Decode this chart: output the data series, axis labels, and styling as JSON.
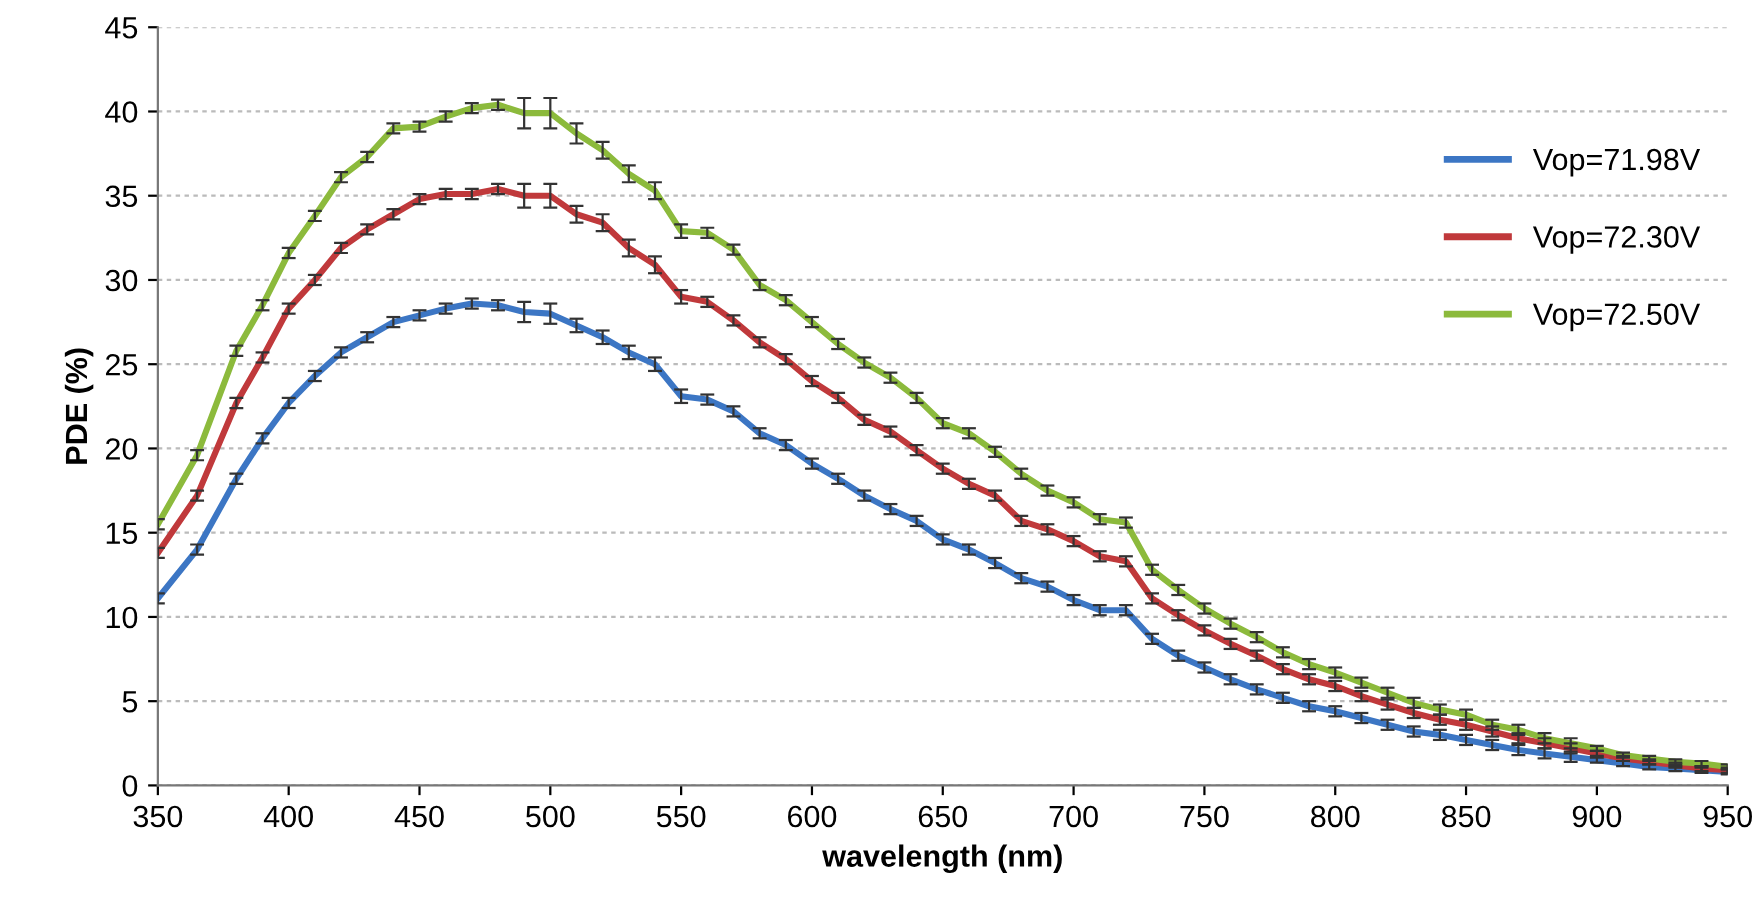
{
  "chart_data": {
    "type": "line",
    "xlabel": "wavelength (nm)",
    "ylabel": "PDE (%)",
    "x": [
      350,
      365,
      380,
      390,
      400,
      410,
      420,
      430,
      440,
      450,
      460,
      470,
      480,
      490,
      500,
      510,
      520,
      530,
      540,
      550,
      560,
      570,
      580,
      590,
      600,
      610,
      620,
      630,
      640,
      650,
      660,
      670,
      680,
      690,
      700,
      710,
      720,
      730,
      740,
      750,
      760,
      770,
      780,
      790,
      800,
      810,
      820,
      830,
      840,
      850,
      860,
      870,
      880,
      890,
      900,
      910,
      920,
      930,
      940,
      950
    ],
    "series": [
      {
        "name": "Vop=71.98V",
        "color": "#3c76c4",
        "values": [
          11.1,
          14,
          18.2,
          20.6,
          22.7,
          24.3,
          25.7,
          26.6,
          27.5,
          27.9,
          28.3,
          28.6,
          28.5,
          28.1,
          28.0,
          27.3,
          26.6,
          25.7,
          25.0,
          23.1,
          22.9,
          22.2,
          20.9,
          20.2,
          19.1,
          18.2,
          17.2,
          16.4,
          15.7,
          14.6,
          14.0,
          13.2,
          12.3,
          11.8,
          11.0,
          10.4,
          10.4,
          8.7,
          7.7,
          7.0,
          6.3,
          5.7,
          5.2,
          4.7,
          4.4,
          4.0,
          3.6,
          3.2,
          3.0,
          2.7,
          2.4,
          2.1,
          1.9,
          1.7,
          1.5,
          1.3,
          1.1,
          1.0,
          0.9,
          0.8
        ],
        "errors": [
          0.3,
          0.3,
          0.3,
          0.3,
          0.3,
          0.3,
          0.3,
          0.3,
          0.3,
          0.3,
          0.3,
          0.3,
          0.3,
          0.6,
          0.6,
          0.4,
          0.4,
          0.4,
          0.4,
          0.4,
          0.3,
          0.3,
          0.3,
          0.3,
          0.3,
          0.3,
          0.3,
          0.3,
          0.3,
          0.3,
          0.3,
          0.3,
          0.3,
          0.3,
          0.3,
          0.3,
          0.3,
          0.3,
          0.3,
          0.3,
          0.3,
          0.3,
          0.3,
          0.3,
          0.3,
          0.3,
          0.3,
          0.3,
          0.3,
          0.3,
          0.3,
          0.3,
          0.3,
          0.3,
          0.15,
          0.15,
          0.15,
          0.15,
          0.15,
          0.15
        ]
      },
      {
        "name": "Vop=72.30V",
        "color": "#c0393b",
        "values": [
          13.8,
          17.2,
          22.7,
          25.4,
          28.3,
          30.0,
          31.9,
          33.0,
          33.9,
          34.8,
          35.1,
          35.1,
          35.4,
          35.0,
          35.0,
          33.9,
          33.4,
          31.9,
          30.9,
          29.0,
          28.7,
          27.6,
          26.3,
          25.3,
          24.0,
          23.0,
          21.7,
          21.0,
          19.9,
          18.8,
          17.9,
          17.2,
          15.7,
          15.2,
          14.5,
          13.6,
          13.3,
          11.1,
          10.1,
          9.2,
          8.4,
          7.7,
          6.9,
          6.3,
          5.9,
          5.3,
          4.8,
          4.3,
          3.9,
          3.6,
          3.2,
          2.8,
          2.5,
          2.2,
          1.9,
          1.6,
          1.4,
          1.2,
          1.0,
          0.9
        ],
        "errors": [
          0.3,
          0.3,
          0.3,
          0.3,
          0.3,
          0.3,
          0.3,
          0.3,
          0.3,
          0.3,
          0.3,
          0.3,
          0.3,
          0.7,
          0.7,
          0.5,
          0.5,
          0.5,
          0.5,
          0.4,
          0.3,
          0.3,
          0.3,
          0.3,
          0.3,
          0.3,
          0.3,
          0.3,
          0.3,
          0.3,
          0.3,
          0.3,
          0.3,
          0.3,
          0.3,
          0.3,
          0.3,
          0.3,
          0.3,
          0.3,
          0.3,
          0.3,
          0.3,
          0.3,
          0.3,
          0.3,
          0.3,
          0.3,
          0.3,
          0.3,
          0.3,
          0.3,
          0.3,
          0.3,
          0.15,
          0.15,
          0.15,
          0.15,
          0.15,
          0.15
        ]
      },
      {
        "name": "Vop=72.50V",
        "color": "#8cba3c",
        "values": [
          15.5,
          19.6,
          25.8,
          28.5,
          31.6,
          33.8,
          36.1,
          37.3,
          39.0,
          39.1,
          39.7,
          40.2,
          40.4,
          39.9,
          39.9,
          38.7,
          37.7,
          36.3,
          35.3,
          32.9,
          32.8,
          31.8,
          29.7,
          28.8,
          27.5,
          26.2,
          25.1,
          24.2,
          23.0,
          21.5,
          20.9,
          19.8,
          18.5,
          17.5,
          16.8,
          15.8,
          15.6,
          12.8,
          11.6,
          10.5,
          9.6,
          8.8,
          7.9,
          7.2,
          6.7,
          6.1,
          5.5,
          4.9,
          4.5,
          4.2,
          3.6,
          3.3,
          2.8,
          2.5,
          2.2,
          1.8,
          1.6,
          1.4,
          1.3,
          1.1
        ],
        "errors": [
          0.3,
          0.3,
          0.3,
          0.3,
          0.3,
          0.3,
          0.3,
          0.3,
          0.3,
          0.3,
          0.3,
          0.3,
          0.3,
          0.9,
          0.9,
          0.6,
          0.5,
          0.5,
          0.5,
          0.4,
          0.3,
          0.3,
          0.3,
          0.3,
          0.3,
          0.3,
          0.3,
          0.3,
          0.3,
          0.3,
          0.3,
          0.3,
          0.3,
          0.3,
          0.3,
          0.3,
          0.3,
          0.3,
          0.3,
          0.3,
          0.3,
          0.3,
          0.3,
          0.3,
          0.3,
          0.3,
          0.3,
          0.3,
          0.3,
          0.3,
          0.3,
          0.3,
          0.3,
          0.3,
          0.15,
          0.15,
          0.15,
          0.15,
          0.15,
          0.15
        ]
      }
    ],
    "xlim": [
      350,
      950
    ],
    "ylim": [
      0,
      45
    ],
    "xticks": [
      350,
      400,
      450,
      500,
      550,
      600,
      650,
      700,
      750,
      800,
      850,
      900,
      950
    ],
    "yticks": [
      0,
      5,
      10,
      15,
      20,
      25,
      30,
      35,
      40,
      45
    ],
    "grid": "y",
    "legend": "right",
    "marker": "none",
    "line_style": "solid"
  }
}
